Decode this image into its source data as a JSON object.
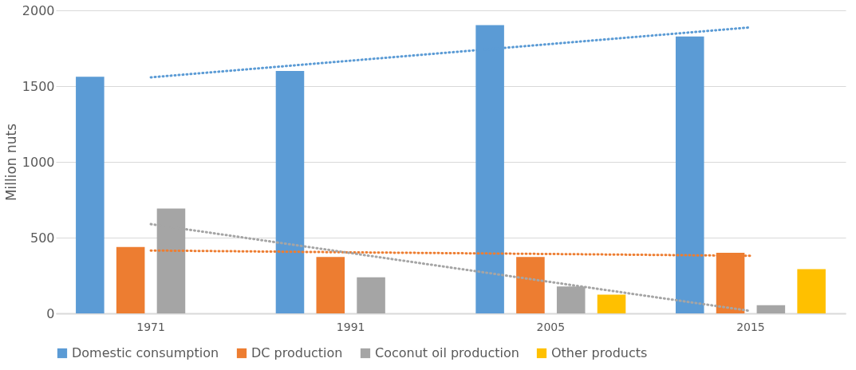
{
  "chart_data": {
    "type": "bar",
    "ylabel": "Million nuts",
    "categories": [
      "1971",
      "1991",
      "2005",
      "2015"
    ],
    "ylim": [
      0,
      2000
    ],
    "yticks": [
      0,
      500,
      1000,
      1500,
      2000
    ],
    "grid": "y",
    "legend": "bottom",
    "series": [
      {
        "name": "Domestic consumption",
        "color": "#5b9bd5",
        "values": [
          1562,
          1600,
          1903,
          1827
        ]
      },
      {
        "name": "DC production",
        "color": "#ed7d31",
        "values": [
          438,
          373,
          373,
          400
        ]
      },
      {
        "name": "Coconut oil production",
        "color": "#a5a5a5",
        "values": [
          692,
          238,
          178,
          54
        ]
      },
      {
        "name": "Other products",
        "color": "#ffc000",
        "values": [
          null,
          null,
          124,
          292
        ]
      },
      {
        "type": "line",
        "line_style": "dotted",
        "marker": "none",
        "color": "#5b9bd5",
        "values": [
          1558,
          1668,
          1778,
          1888
        ]
      },
      {
        "type": "line",
        "line_style": "dotted",
        "marker": "none",
        "color": "#ed7d31",
        "values": [
          415,
          403,
          392,
          380
        ]
      },
      {
        "type": "line",
        "line_style": "dotted",
        "marker": "none",
        "color": "#a5a5a5",
        "values": [
          589,
          398,
          207,
          16
        ]
      }
    ]
  }
}
